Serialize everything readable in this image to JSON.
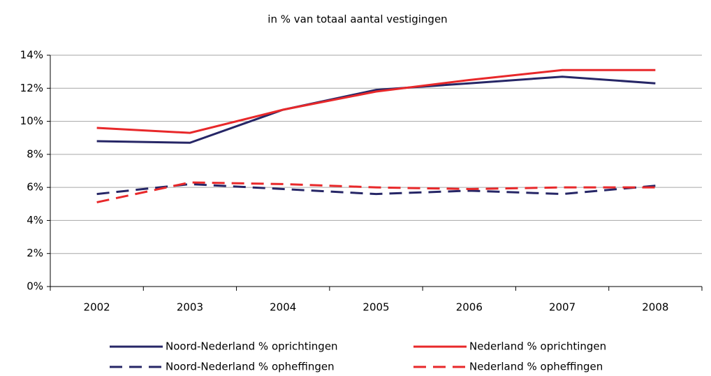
{
  "chart_data": {
    "type": "line",
    "title": "in % van totaal aantal vestigingen",
    "categories": [
      "2002",
      "2003",
      "2004",
      "2005",
      "2006",
      "2007",
      "2008"
    ],
    "series": [
      {
        "name": "Noord-Nederland % oprichtingen",
        "color": "#262666",
        "style": "solid",
        "values": [
          8.8,
          8.7,
          10.7,
          11.9,
          12.3,
          12.7,
          12.3
        ]
      },
      {
        "name": "Nederland % oprichtingen",
        "color": "#e8282a",
        "style": "solid",
        "values": [
          9.6,
          9.3,
          10.7,
          11.8,
          12.5,
          13.1,
          13.1
        ]
      },
      {
        "name": "Noord-Nederland % opheffingen",
        "color": "#262666",
        "style": "dashed",
        "values": [
          5.6,
          6.2,
          5.9,
          5.6,
          5.8,
          5.6,
          6.1
        ]
      },
      {
        "name": "Nederland % opheffingen",
        "color": "#e8282a",
        "style": "dashed",
        "values": [
          5.1,
          6.3,
          6.2,
          6.0,
          5.9,
          6.0,
          6.0
        ]
      }
    ],
    "ylim": [
      0,
      14
    ],
    "yticks": [
      {
        "value": 0,
        "label": "0%"
      },
      {
        "value": 2,
        "label": "2%"
      },
      {
        "value": 4,
        "label": "4%"
      },
      {
        "value": 6,
        "label": "6%"
      },
      {
        "value": 8,
        "label": "8%"
      },
      {
        "value": 10,
        "label": "10%"
      },
      {
        "value": 12,
        "label": "12%"
      },
      {
        "value": 14,
        "label": "14%"
      }
    ],
    "grid": true
  }
}
